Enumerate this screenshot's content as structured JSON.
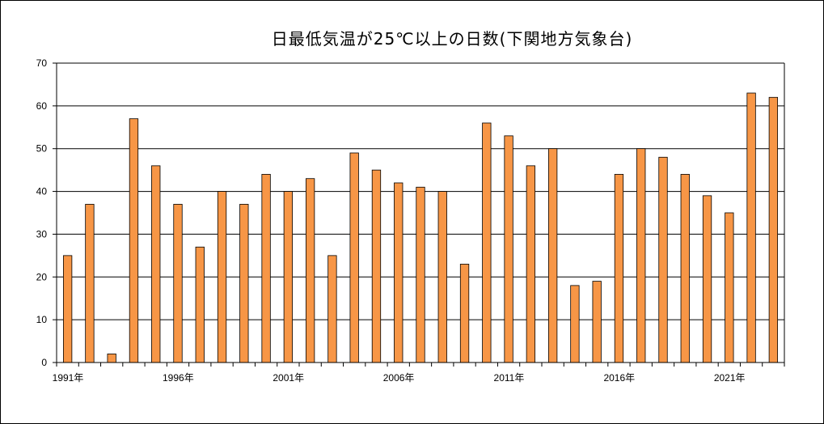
{
  "chart_data": {
    "type": "bar",
    "title": "日最低気温が25℃以上の日数(下関地方気象台)",
    "xlabel": "",
    "ylabel": "",
    "ylim": [
      0,
      70
    ],
    "yticks": [
      0,
      10,
      20,
      30,
      40,
      50,
      60,
      70
    ],
    "grid": true,
    "legend": "none",
    "colors": {
      "bar": "#F79646",
      "bar_edge": "#000000",
      "grid": "#000000",
      "axis": "#000000"
    },
    "categories": [
      "1991年",
      "1992年",
      "1993年",
      "1994年",
      "1995年",
      "1996年",
      "1997年",
      "1998年",
      "1999年",
      "2000年",
      "2001年",
      "2002年",
      "2003年",
      "2004年",
      "2005年",
      "2006年",
      "2007年",
      "2008年",
      "2009年",
      "2010年",
      "2011年",
      "2012年",
      "2013年",
      "2014年",
      "2015年",
      "2016年",
      "2017年",
      "2018年",
      "2019年",
      "2020年",
      "2021年",
      "2022年",
      "2023年"
    ],
    "tick_labels": [
      "1991年",
      "1996年",
      "2001年",
      "2006年",
      "2011年",
      "2016年",
      "2021年"
    ],
    "values": [
      25,
      37,
      2,
      57,
      46,
      37,
      27,
      40,
      37,
      44,
      40,
      43,
      25,
      49,
      45,
      42,
      41,
      40,
      23,
      56,
      53,
      46,
      50,
      18,
      19,
      44,
      50,
      48,
      44,
      39,
      35,
      63,
      62
    ]
  }
}
